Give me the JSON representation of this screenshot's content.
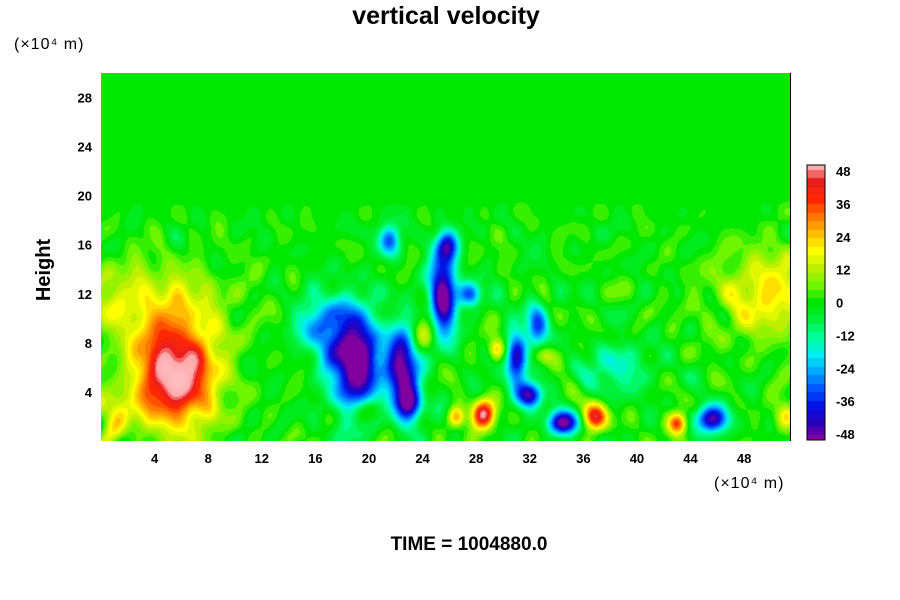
{
  "chart_data": {
    "type": "heatmap",
    "title": "vertical velocity",
    "ylabel": "Height",
    "xunit": "(×10⁴ m)",
    "yunit": "(×10⁴ m)",
    "xlim": [
      0,
      51.5
    ],
    "ylim": [
      0,
      30
    ],
    "xticks": [
      4,
      8,
      12,
      16,
      20,
      24,
      28,
      32,
      36,
      40,
      44,
      48
    ],
    "yticks": [
      4,
      8,
      12,
      16,
      20,
      24,
      28
    ],
    "colorbar": {
      "ticks": [
        48,
        36,
        24,
        12,
        0,
        -12,
        -24,
        -36,
        -48
      ],
      "range": [
        -48,
        48
      ]
    },
    "background_value": 0,
    "noise_top_height": 20,
    "features": [
      {
        "x": 5.5,
        "y": 5.5,
        "sx": 3.0,
        "sy": 4.2,
        "amp": 55
      },
      {
        "x": 3.0,
        "y": 11.5,
        "sx": 6.0,
        "sy": 3.0,
        "amp": 15
      },
      {
        "x": 0.5,
        "y": 2.5,
        "sx": 1.5,
        "sy": 1.5,
        "amp": 18
      },
      {
        "x": 50.0,
        "y": 12.0,
        "sx": 4.0,
        "sy": 3.5,
        "amp": 20
      },
      {
        "x": 19.0,
        "y": 6.5,
        "sx": 1.8,
        "sy": 4.0,
        "amp": -58
      },
      {
        "x": 16.5,
        "y": 9.5,
        "sx": 1.8,
        "sy": 2.5,
        "amp": -26
      },
      {
        "x": 22.5,
        "y": 6.0,
        "sx": 1.2,
        "sy": 3.5,
        "amp": -48
      },
      {
        "x": 23.0,
        "y": 3.0,
        "sx": 1.0,
        "sy": 1.3,
        "amp": -35
      },
      {
        "x": 25.5,
        "y": 12.0,
        "sx": 1.0,
        "sy": 3.5,
        "amp": -52
      },
      {
        "x": 21.5,
        "y": 16.5,
        "sx": 0.8,
        "sy": 1.3,
        "amp": -32
      },
      {
        "x": 27.5,
        "y": 12.0,
        "sx": 0.9,
        "sy": 1.0,
        "amp": -30
      },
      {
        "x": 25.8,
        "y": 16.0,
        "sx": 0.8,
        "sy": 1.2,
        "amp": -30
      },
      {
        "x": 31.0,
        "y": 6.5,
        "sx": 0.8,
        "sy": 2.5,
        "amp": -40
      },
      {
        "x": 32.5,
        "y": 9.5,
        "sx": 0.8,
        "sy": 2.0,
        "amp": -30
      },
      {
        "x": 32.0,
        "y": 3.8,
        "sx": 0.9,
        "sy": 1.0,
        "amp": -40
      },
      {
        "x": 34.5,
        "y": 1.5,
        "sx": 1.2,
        "sy": 1.0,
        "amp": -48
      },
      {
        "x": 45.5,
        "y": 1.8,
        "sx": 1.3,
        "sy": 1.1,
        "amp": -45
      },
      {
        "x": 28.5,
        "y": 2.2,
        "sx": 0.9,
        "sy": 1.2,
        "amp": 42
      },
      {
        "x": 36.8,
        "y": 2.0,
        "sx": 0.9,
        "sy": 1.1,
        "amp": 42
      },
      {
        "x": 43.0,
        "y": 1.5,
        "sx": 0.7,
        "sy": 0.9,
        "amp": 40
      },
      {
        "x": 26.5,
        "y": 2.0,
        "sx": 0.6,
        "sy": 0.8,
        "amp": 25
      },
      {
        "x": 29.5,
        "y": 7.5,
        "sx": 0.6,
        "sy": 0.8,
        "amp": 20
      },
      {
        "x": 33.0,
        "y": 7.0,
        "sx": 0.8,
        "sy": 0.8,
        "amp": 15
      },
      {
        "x": 20.0,
        "y": 2.5,
        "sx": 1.5,
        "sy": 1.0,
        "amp": 15
      },
      {
        "x": 38.5,
        "y": 6.0,
        "sx": 2.5,
        "sy": 2.0,
        "amp": -15
      },
      {
        "x": 24.0,
        "y": 9.0,
        "sx": 1.0,
        "sy": 1.5,
        "amp": 18
      },
      {
        "x": 51.0,
        "y": 2.0,
        "sx": 0.8,
        "sy": 1.2,
        "amp": 20
      }
    ]
  },
  "footer": {
    "time_label": "TIME = 1004880.0"
  }
}
